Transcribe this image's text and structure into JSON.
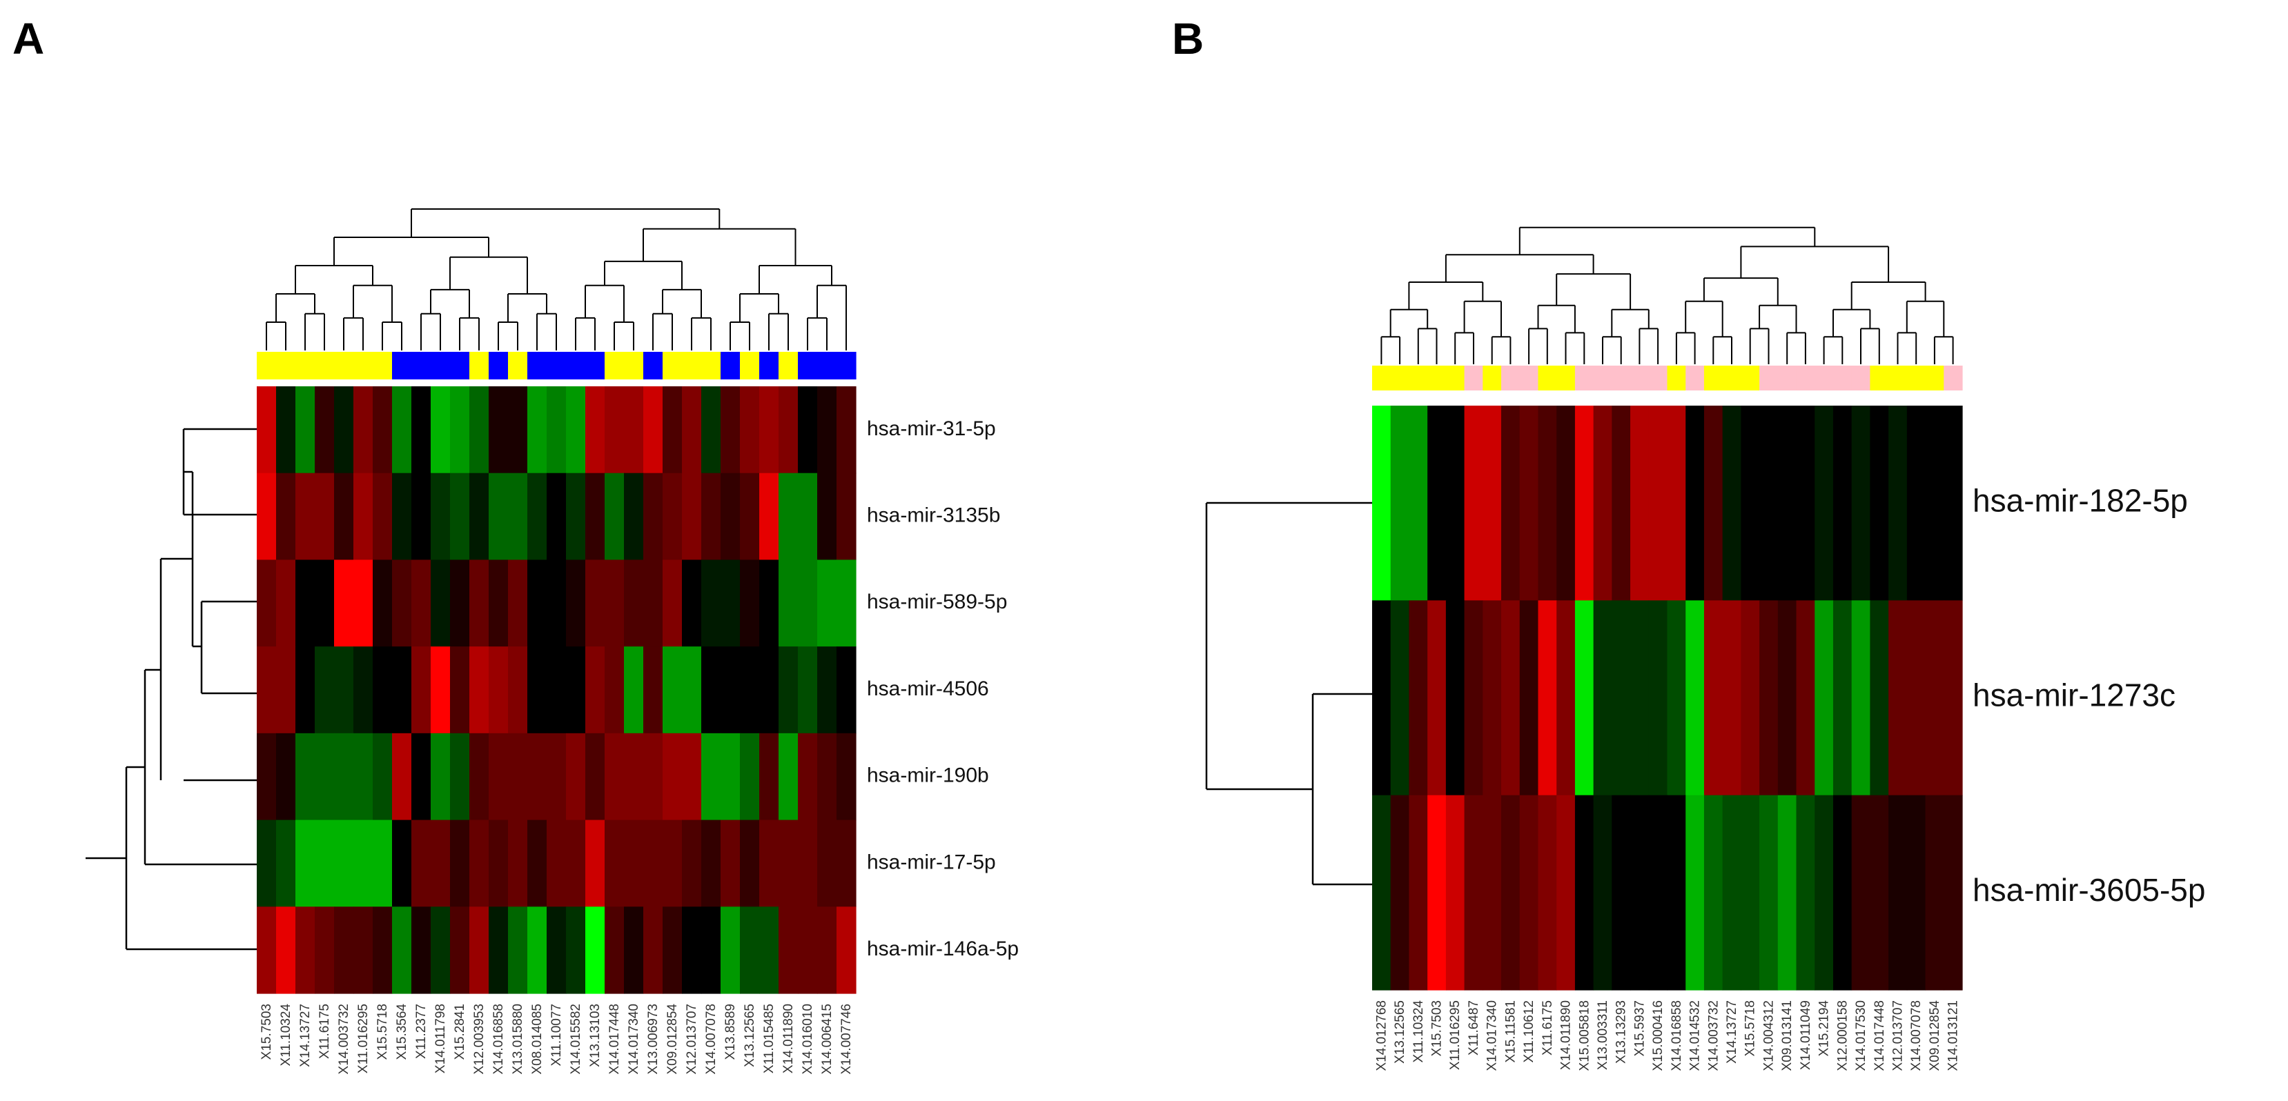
{
  "chart_data": [
    {
      "type": "heatmap",
      "panel": "A",
      "rows": [
        "hsa-mir-31-5p",
        "hsa-mir-3135b",
        "hsa-mir-589-5p",
        "hsa-mir-4506",
        "hsa-mir-190b",
        "hsa-mir-17-5p",
        "hsa-mir-146a-5p"
      ],
      "columns": [
        "X15.7503",
        "X11.10324",
        "X14.13727",
        "X11.6175",
        "X14.003732",
        "X11.016295",
        "X15.5718",
        "X15.3564",
        "X11.2377",
        "X14.011798",
        "X15.2841",
        "X12.003953",
        "X14.016858",
        "X13.015880",
        "X08.014085",
        "X11.10077",
        "X14.015582",
        "X13.13103",
        "X14.017448",
        "X14.017340",
        "X13.006973",
        "X09.012854",
        "X12.013707",
        "X14.007078",
        "X13.8589",
        "X13.12565",
        "X11.015485",
        "X14.011890",
        "X14.016010",
        "X14.006415",
        "X14.007746"
      ],
      "group_colors": [
        "#ffff00",
        "#ffff00",
        "#ffff00",
        "#ffff00",
        "#ffff00",
        "#ffff00",
        "#ffff00",
        "#0000ff",
        "#0000ff",
        "#0000ff",
        "#0000ff",
        "#ffff00",
        "#0000ff",
        "#ffff00",
        "#0000ff",
        "#0000ff",
        "#0000ff",
        "#0000ff",
        "#ffff00",
        "#ffff00",
        "#0000ff",
        "#ffff00",
        "#ffff00",
        "#ffff00",
        "#0000ff",
        "#ffff00",
        "#0000ff",
        "#ffff00",
        "#0000ff",
        "#0000ff",
        "#0000ff"
      ],
      "value_range": [
        -1,
        1
      ],
      "values": [
        [
          0.8,
          -0.1,
          -0.5,
          0.2,
          -0.1,
          0.5,
          0.3,
          -0.5,
          0.0,
          -0.7,
          -0.6,
          -0.4,
          0.1,
          0.1,
          -0.6,
          -0.5,
          -0.6,
          0.7,
          0.6,
          0.6,
          0.8,
          0.3,
          0.5,
          -0.2,
          0.3,
          0.5,
          0.6,
          0.5,
          0.0,
          0.1,
          0.3
        ],
        [
          0.9,
          0.3,
          0.5,
          0.5,
          0.2,
          0.6,
          0.4,
          -0.1,
          0.0,
          -0.2,
          -0.3,
          -0.1,
          -0.4,
          -0.4,
          -0.2,
          0.0,
          -0.2,
          0.2,
          -0.4,
          -0.1,
          0.3,
          0.4,
          0.5,
          0.3,
          0.2,
          0.3,
          0.9,
          -0.5,
          -0.5,
          0.1,
          0.3
        ],
        [
          0.4,
          0.5,
          0.0,
          0.0,
          1.0,
          1.0,
          0.1,
          0.3,
          0.4,
          -0.1,
          0.1,
          0.4,
          0.2,
          0.4,
          0.0,
          0.0,
          0.1,
          0.4,
          0.4,
          0.3,
          0.3,
          0.5,
          0.0,
          -0.1,
          -0.1,
          0.1,
          0.0,
          -0.5,
          -0.5,
          -0.6,
          -0.6
        ],
        [
          0.5,
          0.5,
          0.0,
          -0.2,
          -0.2,
          -0.1,
          0.0,
          0.0,
          0.5,
          1.0,
          0.3,
          0.7,
          0.6,
          0.5,
          0.0,
          0.0,
          0.0,
          0.5,
          0.4,
          -0.6,
          0.3,
          -0.6,
          -0.6,
          0.0,
          0.0,
          0.0,
          0.0,
          -0.2,
          -0.3,
          -0.1,
          0.0
        ],
        [
          0.2,
          0.1,
          -0.4,
          -0.4,
          -0.4,
          -0.4,
          -0.3,
          0.7,
          0.0,
          -0.5,
          -0.3,
          0.3,
          0.4,
          0.4,
          0.4,
          0.4,
          0.5,
          0.3,
          0.5,
          0.5,
          0.5,
          0.6,
          0.6,
          -0.6,
          -0.6,
          -0.4,
          0.3,
          -0.6,
          0.4,
          0.3,
          0.2
        ],
        [
          -0.2,
          -0.3,
          -0.7,
          -0.7,
          -0.7,
          -0.7,
          -0.7,
          0.0,
          0.4,
          0.4,
          0.2,
          0.4,
          0.3,
          0.4,
          0.2,
          0.4,
          0.4,
          0.8,
          0.4,
          0.4,
          0.4,
          0.4,
          0.3,
          0.2,
          0.4,
          0.2,
          0.4,
          0.4,
          0.4,
          0.3,
          0.3
        ],
        [
          0.6,
          0.9,
          0.5,
          0.4,
          0.3,
          0.3,
          0.2,
          -0.5,
          0.1,
          -0.2,
          0.3,
          0.6,
          -0.1,
          -0.4,
          -0.7,
          -0.1,
          -0.2,
          -1.0,
          0.3,
          0.1,
          0.4,
          0.2,
          0.0,
          0.0,
          -0.6,
          -0.3,
          -0.3,
          0.4,
          0.4,
          0.4,
          0.7
        ]
      ]
    },
    {
      "type": "heatmap",
      "panel": "B",
      "rows": [
        "hsa-mir-182-5p",
        "hsa-mir-1273c",
        "hsa-mir-3605-5p"
      ],
      "columns": [
        "X14.012768",
        "X13.12565",
        "X11.10324",
        "X15.7503",
        "X11.016295",
        "X11.6487",
        "X14.017340",
        "X15.11581",
        "X11.10612",
        "X11.6175",
        "X14.011890",
        "X15.005818",
        "X13.003311",
        "X13.13293",
        "X15.5937",
        "X15.000416",
        "X14.016858",
        "X14.014532",
        "X14.003732",
        "X14.13727",
        "X15.5718",
        "X14.004312",
        "X09.013141",
        "X14.011049",
        "X15.2194",
        "X12.000158",
        "X14.017530",
        "X14.017448",
        "X12.013707",
        "X14.007078",
        "X09.012854",
        "X14.013121"
      ],
      "group_colors": [
        "#ffff00",
        "#ffff00",
        "#ffff00",
        "#ffff00",
        "#ffff00",
        "#ffc0cb",
        "#ffff00",
        "#ffc0cb",
        "#ffc0cb",
        "#ffff00",
        "#ffff00",
        "#ffc0cb",
        "#ffc0cb",
        "#ffc0cb",
        "#ffc0cb",
        "#ffc0cb",
        "#ffff00",
        "#ffc0cb",
        "#ffff00",
        "#ffff00",
        "#ffff00",
        "#ffc0cb",
        "#ffc0cb",
        "#ffc0cb",
        "#ffc0cb",
        "#ffc0cb",
        "#ffc0cb",
        "#ffff00",
        "#ffff00",
        "#ffff00",
        "#ffff00",
        "#ffc0cb"
      ],
      "value_range": [
        -1,
        1
      ],
      "values": [
        [
          -1.0,
          -0.6,
          -0.6,
          0.0,
          0.0,
          0.8,
          0.8,
          0.3,
          0.4,
          0.3,
          0.2,
          0.9,
          0.5,
          0.3,
          0.7,
          0.7,
          0.7,
          0.0,
          0.3,
          -0.1,
          0.0,
          0.0,
          0.0,
          0.0,
          -0.1,
          0.0,
          -0.1,
          0.0,
          -0.1,
          0.0,
          0.0,
          0.0
        ],
        [
          0.0,
          -0.2,
          0.3,
          0.6,
          0.0,
          0.3,
          0.4,
          0.5,
          0.2,
          0.9,
          0.5,
          -0.9,
          -0.2,
          -0.2,
          -0.2,
          -0.2,
          -0.3,
          -0.8,
          0.6,
          0.6,
          0.5,
          0.3,
          0.2,
          0.4,
          -0.6,
          -0.3,
          -0.6,
          -0.2,
          0.4,
          0.4,
          0.4,
          0.4
        ],
        [
          -0.2,
          0.2,
          0.4,
          1.0,
          0.8,
          0.4,
          0.4,
          0.3,
          0.4,
          0.5,
          0.6,
          0.0,
          -0.1,
          0.0,
          0.0,
          0.0,
          0.0,
          -0.7,
          -0.4,
          -0.3,
          -0.3,
          -0.4,
          -0.6,
          -0.3,
          -0.2,
          0.0,
          0.2,
          0.2,
          0.1,
          0.1,
          0.2,
          0.2
        ]
      ]
    }
  ],
  "panels": {
    "a": {
      "label": "A"
    },
    "b": {
      "label": "B"
    }
  }
}
